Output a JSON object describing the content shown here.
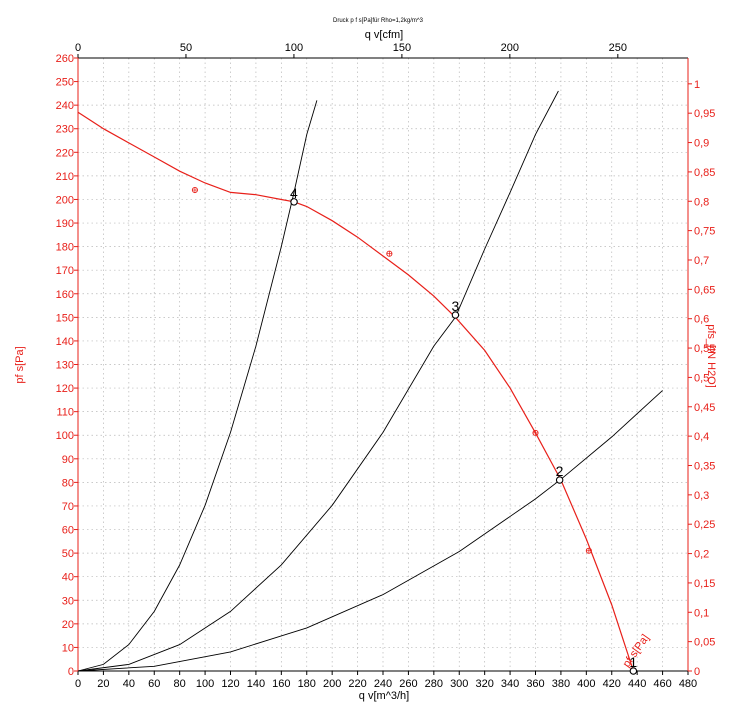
{
  "chart_data": {
    "type": "line",
    "title": "Druck p f s[Pa]für Rho=1,2kg/m^3",
    "x_axis": {
      "label": "q v[m^3/h]",
      "range": [
        0,
        480
      ],
      "ticks": [
        0,
        20,
        40,
        60,
        80,
        100,
        120,
        140,
        160,
        180,
        200,
        220,
        240,
        260,
        280,
        300,
        320,
        340,
        360,
        380,
        400,
        420,
        440,
        460,
        480
      ]
    },
    "x2_axis": {
      "label": "q v[cfm]",
      "range": [
        0,
        282.5
      ],
      "ticks": [
        0,
        50,
        100,
        150,
        200,
        250
      ]
    },
    "y_axis": {
      "label": "pf s[Pa]",
      "range": [
        0,
        260
      ],
      "ticks": [
        0,
        10,
        20,
        30,
        40,
        50,
        60,
        70,
        80,
        90,
        100,
        110,
        120,
        130,
        140,
        150,
        160,
        170,
        180,
        190,
        200,
        210,
        220,
        230,
        240,
        250,
        260
      ]
    },
    "y2_axis": {
      "label": "pfs_[IN H2O]",
      "range": [
        0,
        1.044
      ],
      "ticks": [
        "0",
        "0,05",
        "0,1",
        "0,15",
        "0,2",
        "0,25",
        "0,3",
        "0,35",
        "0,4",
        "0,45",
        "0,5",
        "0,55",
        "0,6",
        "0,65",
        "0,7",
        "0,75",
        "0,8",
        "0,85",
        "0,9",
        "0,95",
        "1"
      ]
    },
    "grid": true,
    "series": [
      {
        "name": "pf s[Pa]",
        "color": "#e8201a",
        "x": [
          0,
          20,
          40,
          60,
          80,
          100,
          120,
          140,
          160,
          170,
          180,
          200,
          220,
          240,
          260,
          280,
          297,
          320,
          340,
          360,
          380,
          400,
          420,
          437
        ],
        "y": [
          237,
          230,
          224,
          218,
          212,
          207,
          203,
          202,
          200,
          199,
          197,
          191,
          184,
          176,
          168,
          159,
          150,
          136,
          120,
          101,
          81,
          56,
          28,
          0
        ]
      }
    ],
    "system_curves": [
      {
        "color": "#000000",
        "x": [
          0,
          20,
          40,
          60,
          80,
          100,
          120,
          140,
          160,
          170,
          180,
          188
        ],
        "y": [
          0,
          2.8,
          11.2,
          25.3,
          45,
          70.3,
          101.2,
          137.8,
          180,
          203,
          227.6,
          242
        ]
      },
      {
        "color": "#000000",
        "x": [
          0,
          40,
          80,
          120,
          160,
          200,
          240,
          280,
          297,
          320,
          340,
          360,
          378
        ],
        "y": [
          0,
          2.8,
          11.2,
          25.3,
          45,
          70.3,
          101.2,
          137.8,
          150,
          179,
          203,
          227.6,
          246
        ]
      },
      {
        "color": "#000000",
        "x": [
          0,
          60,
          120,
          180,
          240,
          300,
          360,
          380,
          420,
          460
        ],
        "y": [
          0,
          2,
          8.1,
          18.3,
          32.4,
          50.7,
          73,
          81.3,
          99.3,
          119
        ]
      }
    ],
    "measured_points": {
      "color": "#e8201a",
      "x": [
        92,
        245,
        360,
        402
      ],
      "y": [
        204,
        177,
        101,
        51
      ]
    },
    "operating_points": [
      {
        "label": "1",
        "x": 437,
        "y": 0
      },
      {
        "label": "2",
        "x": 379,
        "y": 81
      },
      {
        "label": "3",
        "x": 297,
        "y": 151
      },
      {
        "label": "4",
        "x": 170,
        "y": 199
      }
    ],
    "curve_label": "pf s[Pa]"
  }
}
